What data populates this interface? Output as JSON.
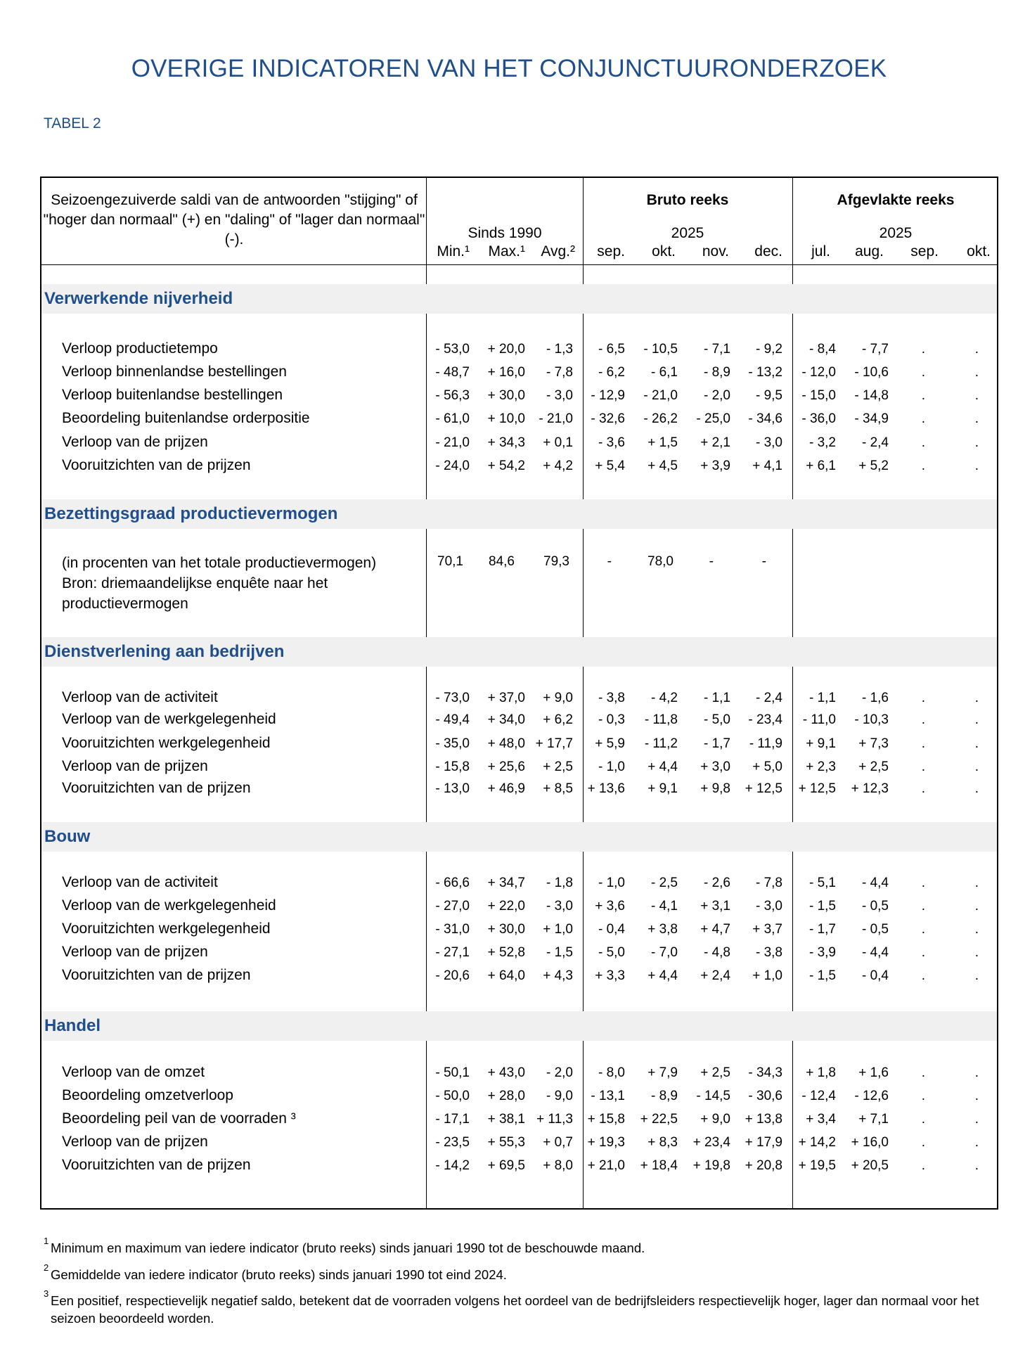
{
  "title": "OVERIGE INDICATOREN VAN HET CONJUNCTUURONDERZOEK",
  "subtitle": "TABEL 2",
  "header": {
    "description": "Seizoengezuiverde saldi van de antwoorden \"stijging\" of \"hoger dan normaal\" (+) en \"daling\" of \"lager dan normaal\" (-).",
    "since": "Sinds 1990",
    "gross_series": "Bruto reeks",
    "gross_year": "2025",
    "smoothed_series": "Afgevlakte reeks",
    "smoothed_year": "2025",
    "columns": [
      "Min.¹",
      "Max.¹",
      "Avg.²",
      "sep.",
      "okt.",
      "nov.",
      "dec.",
      "jul.",
      "aug.",
      "sep.",
      "okt."
    ]
  },
  "sections": [
    {
      "title": "Verwerkende nijverheid",
      "rows": [
        {
          "label": "Verloop productietempo",
          "values": [
            "- 53,0",
            "+ 20,0",
            "- 1,3",
            "- 6,5",
            "- 10,5",
            "- 7,1",
            "- 9,2",
            "- 8,4",
            "- 7,7",
            ".",
            "."
          ]
        },
        {
          "label": "Verloop binnenlandse bestellingen",
          "values": [
            "- 48,7",
            "+ 16,0",
            "- 7,8",
            "- 6,2",
            "- 6,1",
            "- 8,9",
            "- 13,2",
            "- 12,0",
            "- 10,6",
            ".",
            "."
          ]
        },
        {
          "label": "Verloop buitenlandse bestellingen",
          "values": [
            "- 56,3",
            "+ 30,0",
            "- 3,0",
            "- 12,9",
            "- 21,0",
            "- 2,0",
            "- 9,5",
            "- 15,0",
            "- 14,8",
            ".",
            "."
          ]
        },
        {
          "label": "Beoordeling buitenlandse orderpositie",
          "values": [
            "- 61,0",
            "+ 10,0",
            "- 21,0",
            "- 32,6",
            "- 26,2",
            "- 25,0",
            "- 34,6",
            "- 36,0",
            "- 34,9",
            ".",
            "."
          ]
        },
        {
          "label": "Verloop van de prijzen",
          "values": [
            "- 21,0",
            "+ 34,3",
            "+ 0,1",
            "- 3,6",
            "+ 1,5",
            "+ 2,1",
            "- 3,0",
            "- 3,2",
            "- 2,4",
            ".",
            "."
          ]
        },
        {
          "label": "Vooruitzichten van de prijzen",
          "values": [
            "- 24,0",
            "+ 54,2",
            "+ 4,2",
            "+ 5,4",
            "+ 4,5",
            "+ 3,9",
            "+ 4,1",
            "+ 6,1",
            "+ 5,2",
            ".",
            "."
          ]
        }
      ]
    },
    {
      "title": "Bezettingsgraad productievermogen",
      "note": "(in procenten van het totale productievermogen) Bron: driemaandelijkse enquête naar het productievermogen",
      "note_lines": [
        "(in procenten van het totale productievermogen)",
        "Bron: driemaandelijkse enquête naar het",
        "productievermogen"
      ],
      "values": [
        "70,1",
        "84,6",
        "79,3",
        "-",
        "78,0",
        "-",
        "-",
        "",
        "",
        "",
        ""
      ]
    },
    {
      "title": "Dienstverlening aan bedrijven",
      "rows": [
        {
          "label": "Verloop van de activiteit",
          "values": [
            "- 73,0",
            "+ 37,0",
            "+ 9,0",
            "- 3,8",
            "- 4,2",
            "- 1,1",
            "- 2,4",
            "- 1,1",
            "- 1,6",
            ".",
            "."
          ]
        },
        {
          "label": "Verloop van de werkgelegenheid",
          "values": [
            "- 49,4",
            "+ 34,0",
            "+ 6,2",
            "- 0,3",
            "- 11,8",
            "- 5,0",
            "- 23,4",
            "- 11,0",
            "- 10,3",
            ".",
            "."
          ]
        },
        {
          "label": "Vooruitzichten werkgelegenheid",
          "values": [
            "- 35,0",
            "+ 48,0",
            "+ 17,7",
            "+ 5,9",
            "- 11,2",
            "- 1,7",
            "- 11,9",
            "+ 9,1",
            "+ 7,3",
            ".",
            "."
          ]
        },
        {
          "label": "Verloop van de prijzen",
          "values": [
            "- 15,8",
            "+ 25,6",
            "+ 2,5",
            "- 1,0",
            "+ 4,4",
            "+ 3,0",
            "+ 5,0",
            "+ 2,3",
            "+ 2,5",
            ".",
            "."
          ]
        },
        {
          "label": "Vooruitzichten van de prijzen",
          "values": [
            "- 13,0",
            "+ 46,9",
            "+ 8,5",
            "+ 13,6",
            "+ 9,1",
            "+ 9,8",
            "+ 12,5",
            "+ 12,5",
            "+ 12,3",
            ".",
            "."
          ]
        }
      ]
    },
    {
      "title": "Bouw",
      "rows": [
        {
          "label": "Verloop van de activiteit",
          "values": [
            "- 66,6",
            "+ 34,7",
            "- 1,8",
            "- 1,0",
            "- 2,5",
            "- 2,6",
            "- 7,8",
            "- 5,1",
            "- 4,4",
            ".",
            "."
          ]
        },
        {
          "label": "Verloop van de werkgelegenheid",
          "values": [
            "- 27,0",
            "+ 22,0",
            "- 3,0",
            "+ 3,6",
            "- 4,1",
            "+ 3,1",
            "- 3,0",
            "- 1,5",
            "- 0,5",
            ".",
            "."
          ]
        },
        {
          "label": "Vooruitzichten werkgelegenheid",
          "values": [
            "- 31,0",
            "+ 30,0",
            "+ 1,0",
            "- 0,4",
            "+ 3,8",
            "+ 4,7",
            "+ 3,7",
            "- 1,7",
            "- 0,5",
            ".",
            "."
          ]
        },
        {
          "label": "Verloop van de prijzen",
          "values": [
            "- 27,1",
            "+ 52,8",
            "- 1,5",
            "- 5,0",
            "- 7,0",
            "- 4,8",
            "- 3,8",
            "- 3,9",
            "- 4,4",
            ".",
            "."
          ]
        },
        {
          "label": "Vooruitzichten van de prijzen",
          "values": [
            "- 20,6",
            "+ 64,0",
            "+ 4,3",
            "+ 3,3",
            "+ 4,4",
            "+ 2,4",
            "+ 1,0",
            "- 1,5",
            "- 0,4",
            ".",
            "."
          ]
        }
      ]
    },
    {
      "title": "Handel",
      "rows": [
        {
          "label": "Verloop van de omzet",
          "values": [
            "- 50,1",
            "+ 43,0",
            "- 2,0",
            "- 8,0",
            "+ 7,9",
            "+ 2,5",
            "- 34,3",
            "+ 1,8",
            "+ 1,6",
            ".",
            "."
          ]
        },
        {
          "label": "Beoordeling omzetverloop",
          "values": [
            "- 50,0",
            "+ 28,0",
            "- 9,0",
            "- 13,1",
            "- 8,9",
            "- 14,5",
            "- 30,6",
            "- 12,4",
            "- 12,6",
            ".",
            "."
          ]
        },
        {
          "label": "Beoordeling peil van de voorraden ³",
          "values": [
            "- 17,1",
            "+ 38,1",
            "+ 11,3",
            "+ 15,8",
            "+ 22,5",
            "+ 9,0",
            "+ 13,8",
            "+ 3,4",
            "+ 7,1",
            ".",
            "."
          ]
        },
        {
          "label": "Verloop van de prijzen",
          "values": [
            "- 23,5",
            "+ 55,3",
            "+ 0,7",
            "+ 19,3",
            "+ 8,3",
            "+ 23,4",
            "+ 17,9",
            "+ 14,2",
            "+ 16,0",
            ".",
            "."
          ]
        },
        {
          "label": "Vooruitzichten van de prijzen",
          "values": [
            "- 14,2",
            "+ 69,5",
            "+ 8,0",
            "+ 21,0",
            "+ 18,4",
            "+ 19,8",
            "+ 20,8",
            "+ 19,5",
            "+ 20,5",
            ".",
            "."
          ]
        }
      ]
    }
  ],
  "footnotes": [
    {
      "mark": "1",
      "text": "Minimum en maximum van iedere indicator (bruto reeks) sinds januari 1990 tot de beschouwde maand."
    },
    {
      "mark": "2",
      "text": "Gemiddelde van iedere indicator (bruto reeks) sinds januari 1990 tot eind 2024."
    },
    {
      "mark": "3",
      "text": "Een positief, respectievelijk negatief saldo, betekent dat de voorraden volgens het oordeel van de bedrijfsleiders respectievelijk hoger, lager dan normaal voor het seizoen beoordeeld worden."
    }
  ]
}
